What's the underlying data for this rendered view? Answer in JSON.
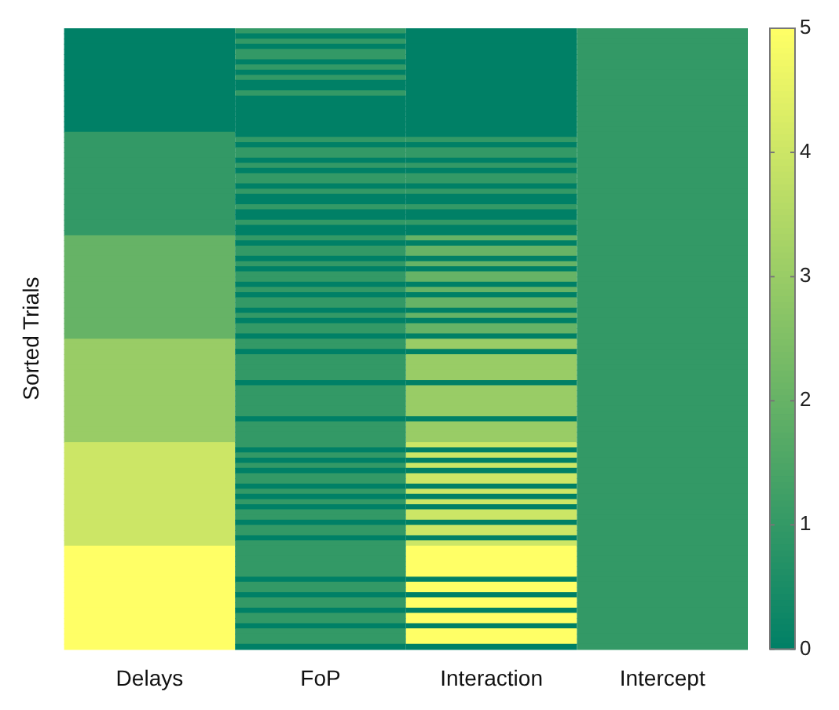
{
  "chart_data": {
    "type": "heatmap",
    "ylabel": "Sorted Trials",
    "categories": [
      "Delays",
      "FoP",
      "Interaction",
      "Intercept"
    ],
    "y_categories": [
      null,
      null,
      null,
      null,
      null,
      null,
      null,
      null,
      null,
      null,
      null,
      null,
      null,
      null,
      null,
      null,
      null,
      null,
      null,
      null,
      null,
      null,
      null,
      null,
      null,
      null,
      null,
      null,
      null,
      null,
      null,
      null,
      null,
      null,
      null,
      null,
      null,
      null,
      null,
      null,
      null,
      null,
      null,
      null,
      null,
      null,
      null,
      null,
      null,
      null,
      null,
      null,
      null,
      null,
      null,
      null,
      null,
      null,
      null,
      null,
      null,
      null,
      null,
      null,
      null,
      null,
      null,
      null,
      null,
      null,
      null,
      null,
      null,
      null,
      null,
      null,
      null,
      null,
      null,
      null,
      null,
      null,
      null,
      null,
      null,
      null,
      null,
      null,
      null,
      null,
      null,
      null,
      null,
      null,
      null,
      null,
      null,
      null,
      null,
      null,
      null,
      null,
      null,
      null,
      null,
      null,
      null,
      null,
      null,
      null,
      null,
      null,
      null,
      null,
      null,
      null,
      null,
      null,
      null,
      null
    ],
    "cells": [
      [
        0,
        1,
        0,
        1
      ],
      [
        0,
        0,
        0,
        1
      ],
      [
        0,
        1,
        0,
        1
      ],
      [
        0,
        0,
        0,
        1
      ],
      [
        0,
        1,
        0,
        1
      ],
      [
        0,
        1,
        0,
        1
      ],
      [
        0,
        0,
        0,
        1
      ],
      [
        0,
        1,
        0,
        1
      ],
      [
        0,
        0,
        0,
        1
      ],
      [
        0,
        1,
        0,
        1
      ],
      [
        0,
        0,
        0,
        1
      ],
      [
        0,
        0,
        0,
        1
      ],
      [
        0,
        1,
        0,
        1
      ],
      [
        0,
        0,
        0,
        1
      ],
      [
        0,
        0,
        0,
        1
      ],
      [
        0,
        0,
        0,
        1
      ],
      [
        0,
        0,
        0,
        1
      ],
      [
        0,
        0,
        0,
        1
      ],
      [
        0,
        0,
        0,
        1
      ],
      [
        0,
        0,
        0,
        1
      ],
      [
        1,
        0,
        0,
        1
      ],
      [
        1,
        1,
        1,
        1
      ],
      [
        1,
        0,
        0,
        1
      ],
      [
        1,
        1,
        1,
        1
      ],
      [
        1,
        1,
        1,
        1
      ],
      [
        1,
        0,
        0,
        1
      ],
      [
        1,
        1,
        1,
        1
      ],
      [
        1,
        0,
        0,
        1
      ],
      [
        1,
        1,
        1,
        1
      ],
      [
        1,
        1,
        1,
        1
      ],
      [
        1,
        0,
        0,
        1
      ],
      [
        1,
        1,
        1,
        1
      ],
      [
        1,
        0,
        0,
        1
      ],
      [
        1,
        0,
        0,
        1
      ],
      [
        1,
        1,
        1,
        1
      ],
      [
        1,
        0,
        0,
        1
      ],
      [
        1,
        0,
        0,
        1
      ],
      [
        1,
        1,
        1,
        1
      ],
      [
        1,
        0,
        0,
        1
      ],
      [
        1,
        0,
        0,
        1
      ],
      [
        2,
        1,
        2,
        1
      ],
      [
        2,
        0,
        0,
        1
      ],
      [
        2,
        1,
        2,
        1
      ],
      [
        2,
        1,
        2,
        1
      ],
      [
        2,
        0,
        0,
        1
      ],
      [
        2,
        1,
        2,
        1
      ],
      [
        2,
        0,
        0,
        1
      ],
      [
        2,
        1,
        2,
        1
      ],
      [
        2,
        1,
        2,
        1
      ],
      [
        2,
        0,
        0,
        1
      ],
      [
        2,
        1,
        2,
        1
      ],
      [
        2,
        0,
        0,
        1
      ],
      [
        2,
        1,
        2,
        1
      ],
      [
        2,
        1,
        2,
        1
      ],
      [
        2,
        0,
        0,
        1
      ],
      [
        2,
        1,
        2,
        1
      ],
      [
        2,
        0,
        0,
        1
      ],
      [
        2,
        1,
        2,
        1
      ],
      [
        2,
        1,
        2,
        1
      ],
      [
        2,
        0,
        0,
        1
      ],
      [
        3,
        1,
        3,
        1
      ],
      [
        3,
        1,
        3,
        1
      ],
      [
        3,
        0,
        0,
        1
      ],
      [
        3,
        1,
        3,
        1
      ],
      [
        3,
        1,
        3,
        1
      ],
      [
        3,
        1,
        3,
        1
      ],
      [
        3,
        1,
        3,
        1
      ],
      [
        3,
        1,
        3,
        1
      ],
      [
        3,
        0,
        0,
        1
      ],
      [
        3,
        1,
        3,
        1
      ],
      [
        3,
        1,
        3,
        1
      ],
      [
        3,
        1,
        3,
        1
      ],
      [
        3,
        1,
        3,
        1
      ],
      [
        3,
        1,
        3,
        1
      ],
      [
        3,
        1,
        3,
        1
      ],
      [
        3,
        0,
        0,
        1
      ],
      [
        3,
        1,
        3,
        1
      ],
      [
        3,
        1,
        3,
        1
      ],
      [
        3,
        1,
        3,
        1
      ],
      [
        3,
        1,
        3,
        1
      ],
      [
        4,
        1,
        4,
        1
      ],
      [
        4,
        0,
        0,
        1
      ],
      [
        4,
        1,
        4,
        1
      ],
      [
        4,
        0,
        0,
        1
      ],
      [
        4,
        1,
        4,
        1
      ],
      [
        4,
        0,
        0,
        1
      ],
      [
        4,
        1,
        4,
        1
      ],
      [
        4,
        1,
        4,
        1
      ],
      [
        4,
        0,
        0,
        1
      ],
      [
        4,
        1,
        4,
        1
      ],
      [
        4,
        0,
        0,
        1
      ],
      [
        4,
        1,
        4,
        1
      ],
      [
        4,
        0,
        0,
        1
      ],
      [
        4,
        1,
        4,
        1
      ],
      [
        4,
        1,
        4,
        1
      ],
      [
        4,
        0,
        0,
        1
      ],
      [
        4,
        1,
        4,
        1
      ],
      [
        4,
        1,
        4,
        1
      ],
      [
        4,
        0,
        0,
        1
      ],
      [
        4,
        1,
        4,
        1
      ],
      [
        5,
        1,
        5,
        1
      ],
      [
        5,
        1,
        5,
        1
      ],
      [
        5,
        1,
        5,
        1
      ],
      [
        5,
        1,
        5,
        1
      ],
      [
        5,
        1,
        5,
        1
      ],
      [
        5,
        1,
        5,
        1
      ],
      [
        5,
        0,
        0,
        1
      ],
      [
        5,
        1,
        5,
        1
      ],
      [
        5,
        1,
        5,
        1
      ],
      [
        5,
        0,
        0,
        1
      ],
      [
        5,
        1,
        5,
        1
      ],
      [
        5,
        1,
        5,
        1
      ],
      [
        5,
        0,
        0,
        1
      ],
      [
        5,
        1,
        5,
        1
      ],
      [
        5,
        1,
        5,
        1
      ],
      [
        5,
        0,
        0,
        1
      ],
      [
        5,
        1,
        5,
        1
      ],
      [
        5,
        1,
        5,
        1
      ],
      [
        5,
        1,
        5,
        1
      ],
      [
        5,
        0,
        0,
        1
      ]
    ],
    "clim": [
      0,
      5
    ],
    "cticks": [
      0,
      1,
      2,
      3,
      4,
      5
    ],
    "tick_labels": "x"
  }
}
